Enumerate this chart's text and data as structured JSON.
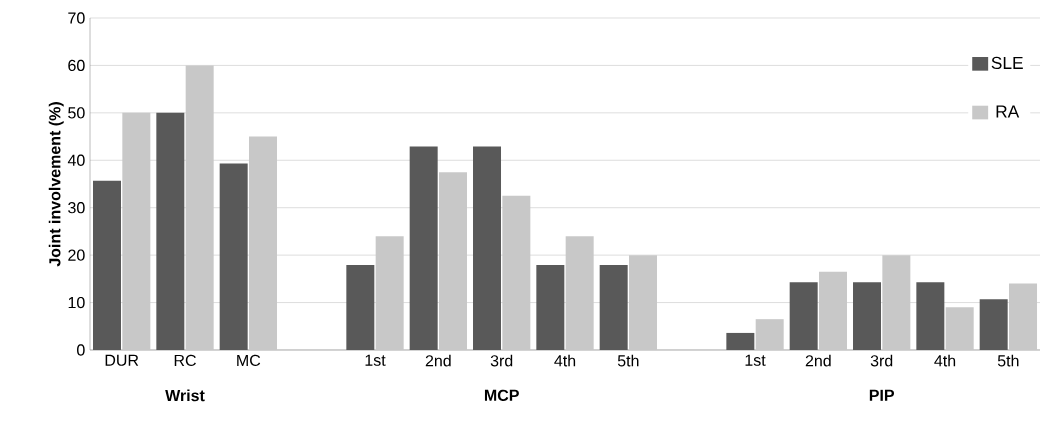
{
  "chart_data": {
    "type": "bar",
    "ylabel": "Joint involvement (%)",
    "categories": [
      "DUR",
      "RC",
      "MC",
      null,
      "1st",
      "2nd",
      "3rd",
      "4th",
      "5th",
      null,
      "1st",
      "2nd",
      "3rd",
      "4th",
      "5th"
    ],
    "series": [
      {
        "name": "SLE",
        "color": "#595959",
        "values": [
          35.7,
          50,
          39.3,
          null,
          17.9,
          42.9,
          42.9,
          17.9,
          17.9,
          null,
          3.6,
          14.3,
          14.3,
          14.3,
          10.7
        ]
      },
      {
        "name": "RA",
        "color": "#c8c8c8",
        "values": [
          50,
          60,
          45,
          null,
          24,
          37.5,
          32.5,
          24,
          20,
          null,
          6.5,
          16.5,
          20,
          9,
          14
        ]
      }
    ],
    "ylim": [
      0,
      70
    ],
    "yticks": [
      0,
      10,
      20,
      30,
      40,
      50,
      60,
      70
    ],
    "grid": "y",
    "legend": "top right",
    "annotations": [
      "Wrist",
      "MCP",
      "PIP"
    ]
  }
}
